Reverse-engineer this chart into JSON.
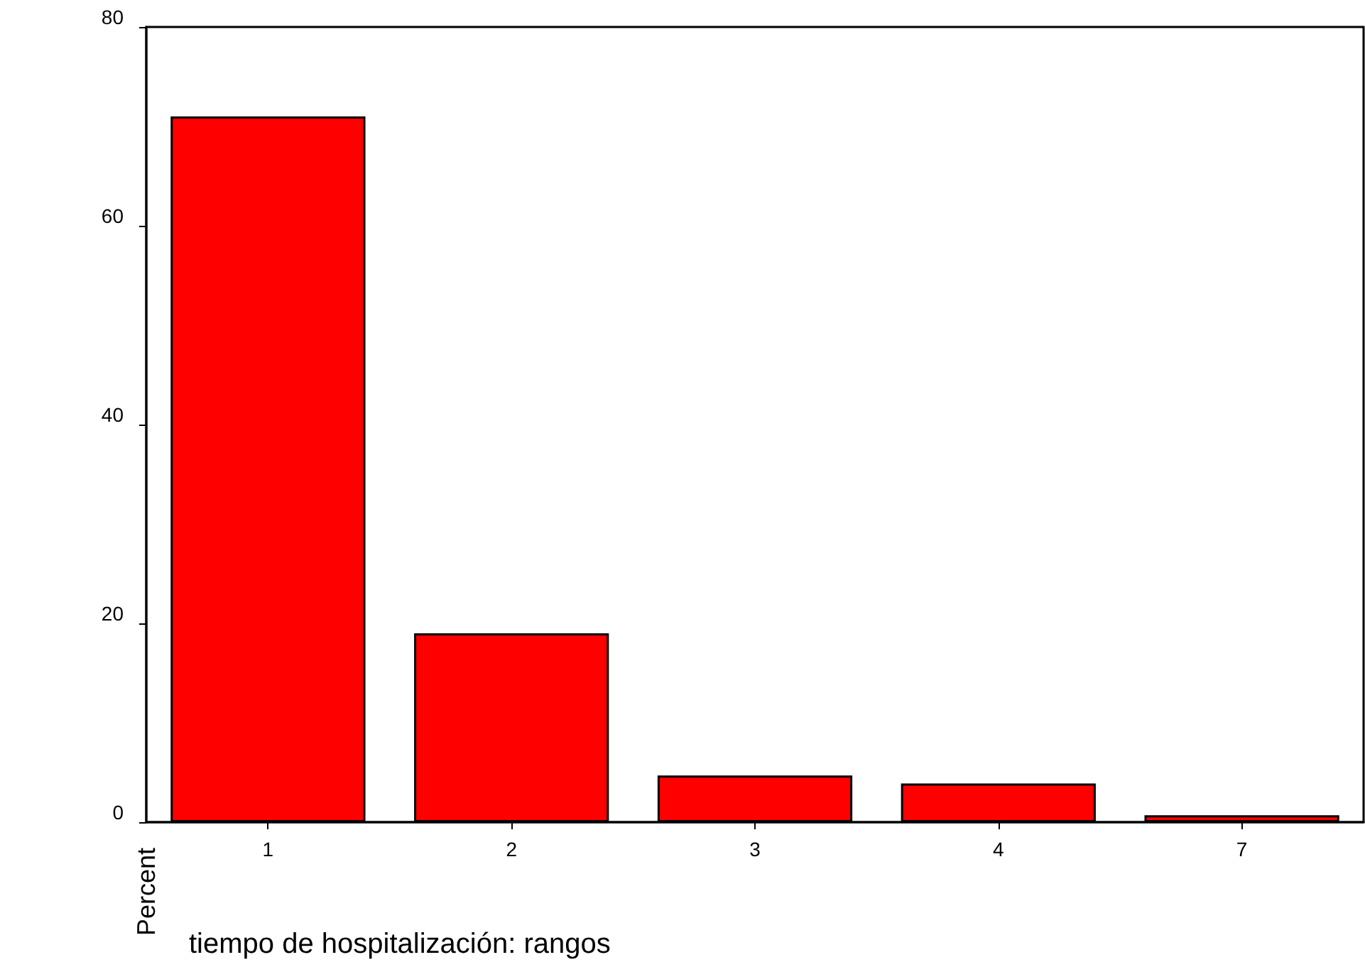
{
  "chart_data": {
    "type": "bar",
    "xlabel": "tiempo de hospitalización: rangos",
    "ylabel": "Percent",
    "categories": [
      "1",
      "2",
      "3",
      "4",
      "7"
    ],
    "values": [
      71,
      19,
      4.7,
      3.9,
      0.7
    ],
    "color": "#ff0000",
    "ylim": [
      0,
      80
    ],
    "yticks": [
      0,
      20,
      40,
      60,
      80
    ],
    "grid": false
  }
}
